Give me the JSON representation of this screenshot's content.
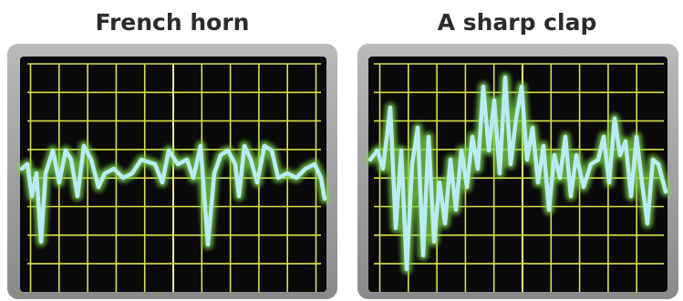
{
  "panels": [
    {
      "title": "French horn"
    },
    {
      "title": "A sharp clap"
    }
  ]
}
